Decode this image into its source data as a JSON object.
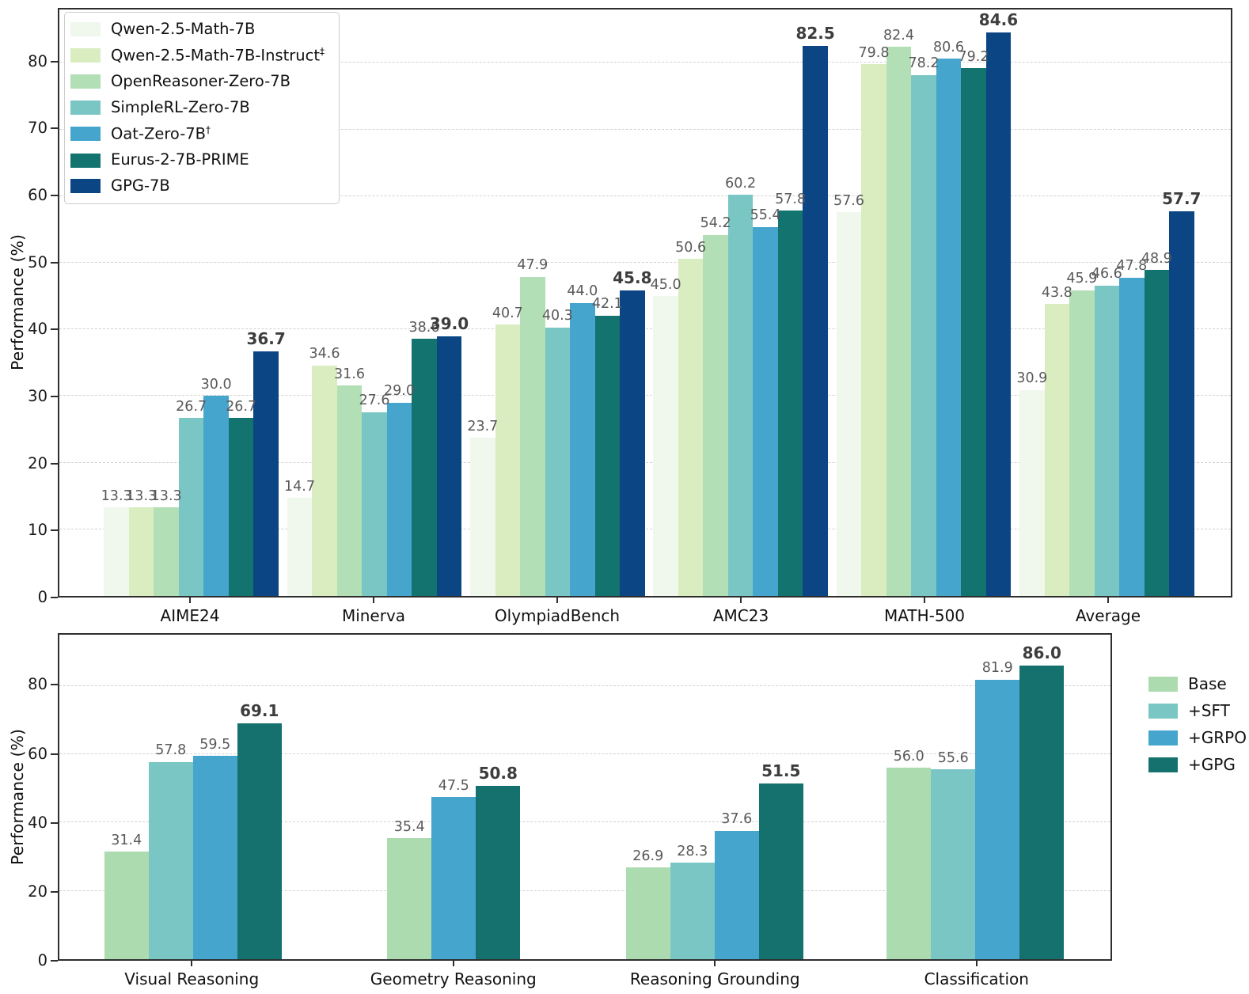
{
  "chart_data": [
    {
      "type": "bar",
      "id": "math-benchmarks",
      "title": "",
      "xlabel": "",
      "ylabel": "Performance (%)",
      "ylim": [
        0,
        88
      ],
      "yticks": [
        0,
        10,
        20,
        30,
        40,
        50,
        60,
        70,
        80
      ],
      "grid": "horizontal-dashed",
      "legend": {
        "position": "upper-left-inside",
        "frame": true
      },
      "categories": [
        "AIME24",
        "Minerva",
        "OlympiadBench",
        "AMC23",
        "MATH-500",
        "Average"
      ],
      "series": [
        {
          "name": "Qwen-2.5-Math-7B",
          "sup": "",
          "color": "#f0f7ec",
          "bold_labels": false,
          "values": [
            13.3,
            14.7,
            23.7,
            45.0,
            57.6,
            30.9
          ]
        },
        {
          "name": "Qwen-2.5-Math-7B-Instruct",
          "sup": "‡",
          "color": "#d9edc0",
          "bold_labels": false,
          "values": [
            13.3,
            34.6,
            40.7,
            50.6,
            79.8,
            43.8
          ]
        },
        {
          "name": "OpenReasoner-Zero-7B",
          "sup": "",
          "color": "#b2dfb5",
          "bold_labels": false,
          "values": [
            13.3,
            31.6,
            47.9,
            54.2,
            82.4,
            45.9
          ]
        },
        {
          "name": "SimpleRL-Zero-7B",
          "sup": "",
          "color": "#7ac6c4",
          "bold_labels": false,
          "values": [
            26.7,
            27.6,
            40.3,
            60.2,
            78.2,
            46.6
          ]
        },
        {
          "name": "Oat-Zero-7B",
          "sup": "†",
          "color": "#45a5cd",
          "bold_labels": false,
          "values": [
            30.0,
            29.0,
            44.0,
            55.4,
            80.6,
            47.8
          ]
        },
        {
          "name": "Eurus-2-7B-PRIME",
          "sup": "",
          "color": "#13736e",
          "bold_labels": false,
          "values": [
            26.7,
            38.6,
            42.1,
            57.8,
            79.2,
            48.9
          ]
        },
        {
          "name": "GPG-7B",
          "sup": "",
          "color": "#0b4584",
          "bold_labels": true,
          "values": [
            36.7,
            39.0,
            45.8,
            82.5,
            84.6,
            57.7
          ]
        }
      ]
    },
    {
      "type": "bar",
      "id": "multimodal-tasks",
      "title": "",
      "xlabel": "",
      "ylabel": "Performance (%)",
      "ylim": [
        0,
        95
      ],
      "yticks": [
        0,
        20,
        40,
        60,
        80
      ],
      "grid": "horizontal-dashed",
      "legend": {
        "position": "right-outside",
        "frame": false
      },
      "categories": [
        "Visual Reasoning",
        "Geometry Reasoning",
        "Reasoning Grounding",
        "Classification"
      ],
      "series": [
        {
          "name": "Base",
          "sup": "",
          "color": "#addbb0",
          "bold_labels": false,
          "values": [
            31.4,
            35.4,
            26.9,
            56.0
          ]
        },
        {
          "name": "+SFT",
          "sup": "",
          "color": "#7ac6c4",
          "bold_labels": false,
          "values": [
            57.8,
            null,
            28.3,
            55.6
          ]
        },
        {
          "name": "+GRPO",
          "sup": "",
          "color": "#45a5cd",
          "bold_labels": false,
          "values": [
            59.5,
            47.5,
            37.6,
            81.9
          ]
        },
        {
          "name": "+GPG",
          "sup": "",
          "color": "#15716e",
          "bold_labels": true,
          "values": [
            69.1,
            50.8,
            51.5,
            86.0
          ]
        }
      ]
    }
  ]
}
